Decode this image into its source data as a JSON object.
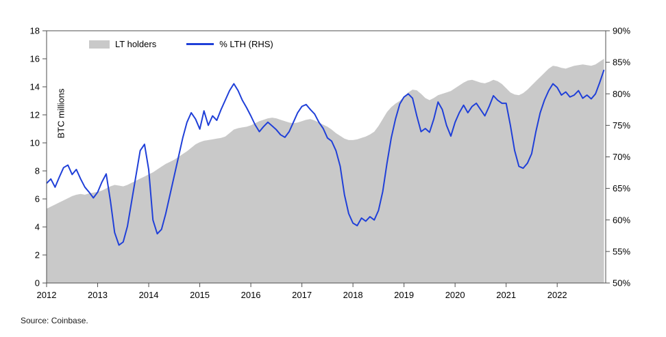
{
  "source": "Source: Coinbase.",
  "legend": {
    "area": "LT holders",
    "line": "% LTH (RHS)"
  },
  "axes": {
    "left_label": "BTC millions"
  },
  "colors": {
    "area": "#c9c9c9",
    "line": "#1f3fd8",
    "axis": "#4d4d4d",
    "text": "#000000"
  },
  "chart_data": {
    "type": "area",
    "subtype": "area + line combo, dual y-axes",
    "title": "",
    "grid": false,
    "legend_position": "top-left-inside",
    "x_axis": {
      "min": 2012,
      "max": 2022.95,
      "ticks": [
        2012,
        2013,
        2014,
        2015,
        2016,
        2017,
        2018,
        2019,
        2020,
        2021,
        2022
      ],
      "tick_labels": [
        "2012",
        "2013",
        "2014",
        "2015",
        "2016",
        "2017",
        "2018",
        "2019",
        "2020",
        "2021",
        "2022"
      ]
    },
    "left_axis": {
      "label": "BTC millions",
      "min": 0,
      "max": 18,
      "ticks": [
        0,
        2,
        4,
        6,
        8,
        10,
        12,
        14,
        16,
        18
      ],
      "tick_labels": [
        "0",
        "2",
        "4",
        "6",
        "8",
        "10",
        "12",
        "14",
        "16",
        "18"
      ]
    },
    "right_axis": {
      "label": "% LTH",
      "min": 50,
      "max": 90,
      "ticks": [
        50,
        55,
        60,
        65,
        70,
        75,
        80,
        85,
        90
      ],
      "tick_labels": [
        "50%",
        "55%",
        "60%",
        "65%",
        "70%",
        "75%",
        "80%",
        "85%",
        "90%"
      ]
    },
    "x": [
      2012.0,
      2012.083,
      2012.167,
      2012.25,
      2012.333,
      2012.417,
      2012.5,
      2012.583,
      2012.667,
      2012.75,
      2012.833,
      2012.917,
      2013.0,
      2013.083,
      2013.167,
      2013.25,
      2013.333,
      2013.417,
      2013.5,
      2013.583,
      2013.667,
      2013.75,
      2013.833,
      2013.917,
      2014.0,
      2014.083,
      2014.167,
      2014.25,
      2014.333,
      2014.417,
      2014.5,
      2014.583,
      2014.667,
      2014.75,
      2014.833,
      2014.917,
      2015.0,
      2015.083,
      2015.167,
      2015.25,
      2015.333,
      2015.417,
      2015.5,
      2015.583,
      2015.667,
      2015.75,
      2015.833,
      2015.917,
      2016.0,
      2016.083,
      2016.167,
      2016.25,
      2016.333,
      2016.417,
      2016.5,
      2016.583,
      2016.667,
      2016.75,
      2016.833,
      2016.917,
      2017.0,
      2017.083,
      2017.167,
      2017.25,
      2017.333,
      2017.417,
      2017.5,
      2017.583,
      2017.667,
      2017.75,
      2017.833,
      2017.917,
      2018.0,
      2018.083,
      2018.167,
      2018.25,
      2018.333,
      2018.417,
      2018.5,
      2018.583,
      2018.667,
      2018.75,
      2018.833,
      2018.917,
      2019.0,
      2019.083,
      2019.167,
      2019.25,
      2019.333,
      2019.417,
      2019.5,
      2019.583,
      2019.667,
      2019.75,
      2019.833,
      2019.917,
      2020.0,
      2020.083,
      2020.167,
      2020.25,
      2020.333,
      2020.417,
      2020.5,
      2020.583,
      2020.667,
      2020.75,
      2020.833,
      2020.917,
      2021.0,
      2021.083,
      2021.167,
      2021.25,
      2021.333,
      2021.417,
      2021.5,
      2021.583,
      2021.667,
      2021.75,
      2021.833,
      2021.917,
      2022.0,
      2022.083,
      2022.167,
      2022.25,
      2022.333,
      2022.417,
      2022.5,
      2022.583,
      2022.667,
      2022.75,
      2022.833,
      2022.917
    ],
    "series": [
      {
        "name": "LT holders",
        "type": "area",
        "axis": "left",
        "unit": "BTC millions",
        "values": [
          5.3,
          5.45,
          5.6,
          5.75,
          5.9,
          6.05,
          6.2,
          6.3,
          6.35,
          6.3,
          6.4,
          6.45,
          6.5,
          6.6,
          6.75,
          6.9,
          7.0,
          6.95,
          6.9,
          7.0,
          7.15,
          7.3,
          7.45,
          7.6,
          7.75,
          7.9,
          8.1,
          8.3,
          8.5,
          8.65,
          8.8,
          9.0,
          9.2,
          9.4,
          9.65,
          9.9,
          10.05,
          10.15,
          10.2,
          10.25,
          10.3,
          10.35,
          10.45,
          10.7,
          10.95,
          11.05,
          11.1,
          11.15,
          11.25,
          11.4,
          11.55,
          11.65,
          11.75,
          11.8,
          11.75,
          11.65,
          11.55,
          11.45,
          11.4,
          11.45,
          11.55,
          11.65,
          11.7,
          11.6,
          11.45,
          11.3,
          11.15,
          10.95,
          10.7,
          10.5,
          10.3,
          10.2,
          10.2,
          10.25,
          10.35,
          10.45,
          10.6,
          10.8,
          11.2,
          11.7,
          12.2,
          12.55,
          12.8,
          13.0,
          13.3,
          13.6,
          13.8,
          13.75,
          13.5,
          13.2,
          13.05,
          13.2,
          13.4,
          13.5,
          13.6,
          13.7,
          13.9,
          14.1,
          14.3,
          14.45,
          14.5,
          14.4,
          14.3,
          14.25,
          14.35,
          14.5,
          14.4,
          14.2,
          13.9,
          13.6,
          13.45,
          13.4,
          13.55,
          13.8,
          14.1,
          14.4,
          14.7,
          15.0,
          15.3,
          15.5,
          15.45,
          15.35,
          15.3,
          15.4,
          15.5,
          15.55,
          15.6,
          15.55,
          15.5,
          15.6,
          15.8,
          16.0
        ]
      },
      {
        "name": "% LTH (RHS)",
        "type": "line",
        "axis": "right",
        "unit": "%",
        "values": [
          65.8,
          66.5,
          65.2,
          66.8,
          68.3,
          68.7,
          67.2,
          68.0,
          66.5,
          65.2,
          64.4,
          63.5,
          64.4,
          66.0,
          67.3,
          63.0,
          58.0,
          56.0,
          56.5,
          59.0,
          63.0,
          67.0,
          71.0,
          72.0,
          68.0,
          60.0,
          57.8,
          58.5,
          61.0,
          64.0,
          67.0,
          70.0,
          73.0,
          75.5,
          77.0,
          76.0,
          74.4,
          77.3,
          75.0,
          76.5,
          75.8,
          77.5,
          79.0,
          80.5,
          81.6,
          80.5,
          79.0,
          77.8,
          76.5,
          75.1,
          74.0,
          74.8,
          75.5,
          74.9,
          74.3,
          73.5,
          73.1,
          74.0,
          75.5,
          77.0,
          78.0,
          78.3,
          77.5,
          76.8,
          75.5,
          74.5,
          73.0,
          72.5,
          71.0,
          68.5,
          64.0,
          61.0,
          59.5,
          59.1,
          60.3,
          59.8,
          60.5,
          60.0,
          61.5,
          64.5,
          69.0,
          73.0,
          76.0,
          78.4,
          79.5,
          80.0,
          79.3,
          76.5,
          74.0,
          74.5,
          73.9,
          76.0,
          78.7,
          77.5,
          75.0,
          73.3,
          75.5,
          77.0,
          78.2,
          77.0,
          78.0,
          78.5,
          77.5,
          76.5,
          78.0,
          79.7,
          79.0,
          78.5,
          78.5,
          75.0,
          71.0,
          68.5,
          68.2,
          69.0,
          70.5,
          74.0,
          77.0,
          79.0,
          80.5,
          81.6,
          81.0,
          79.8,
          80.3,
          79.5,
          79.8,
          80.5,
          79.3,
          79.8,
          79.2,
          80.0,
          81.8,
          83.8
        ]
      }
    ]
  }
}
